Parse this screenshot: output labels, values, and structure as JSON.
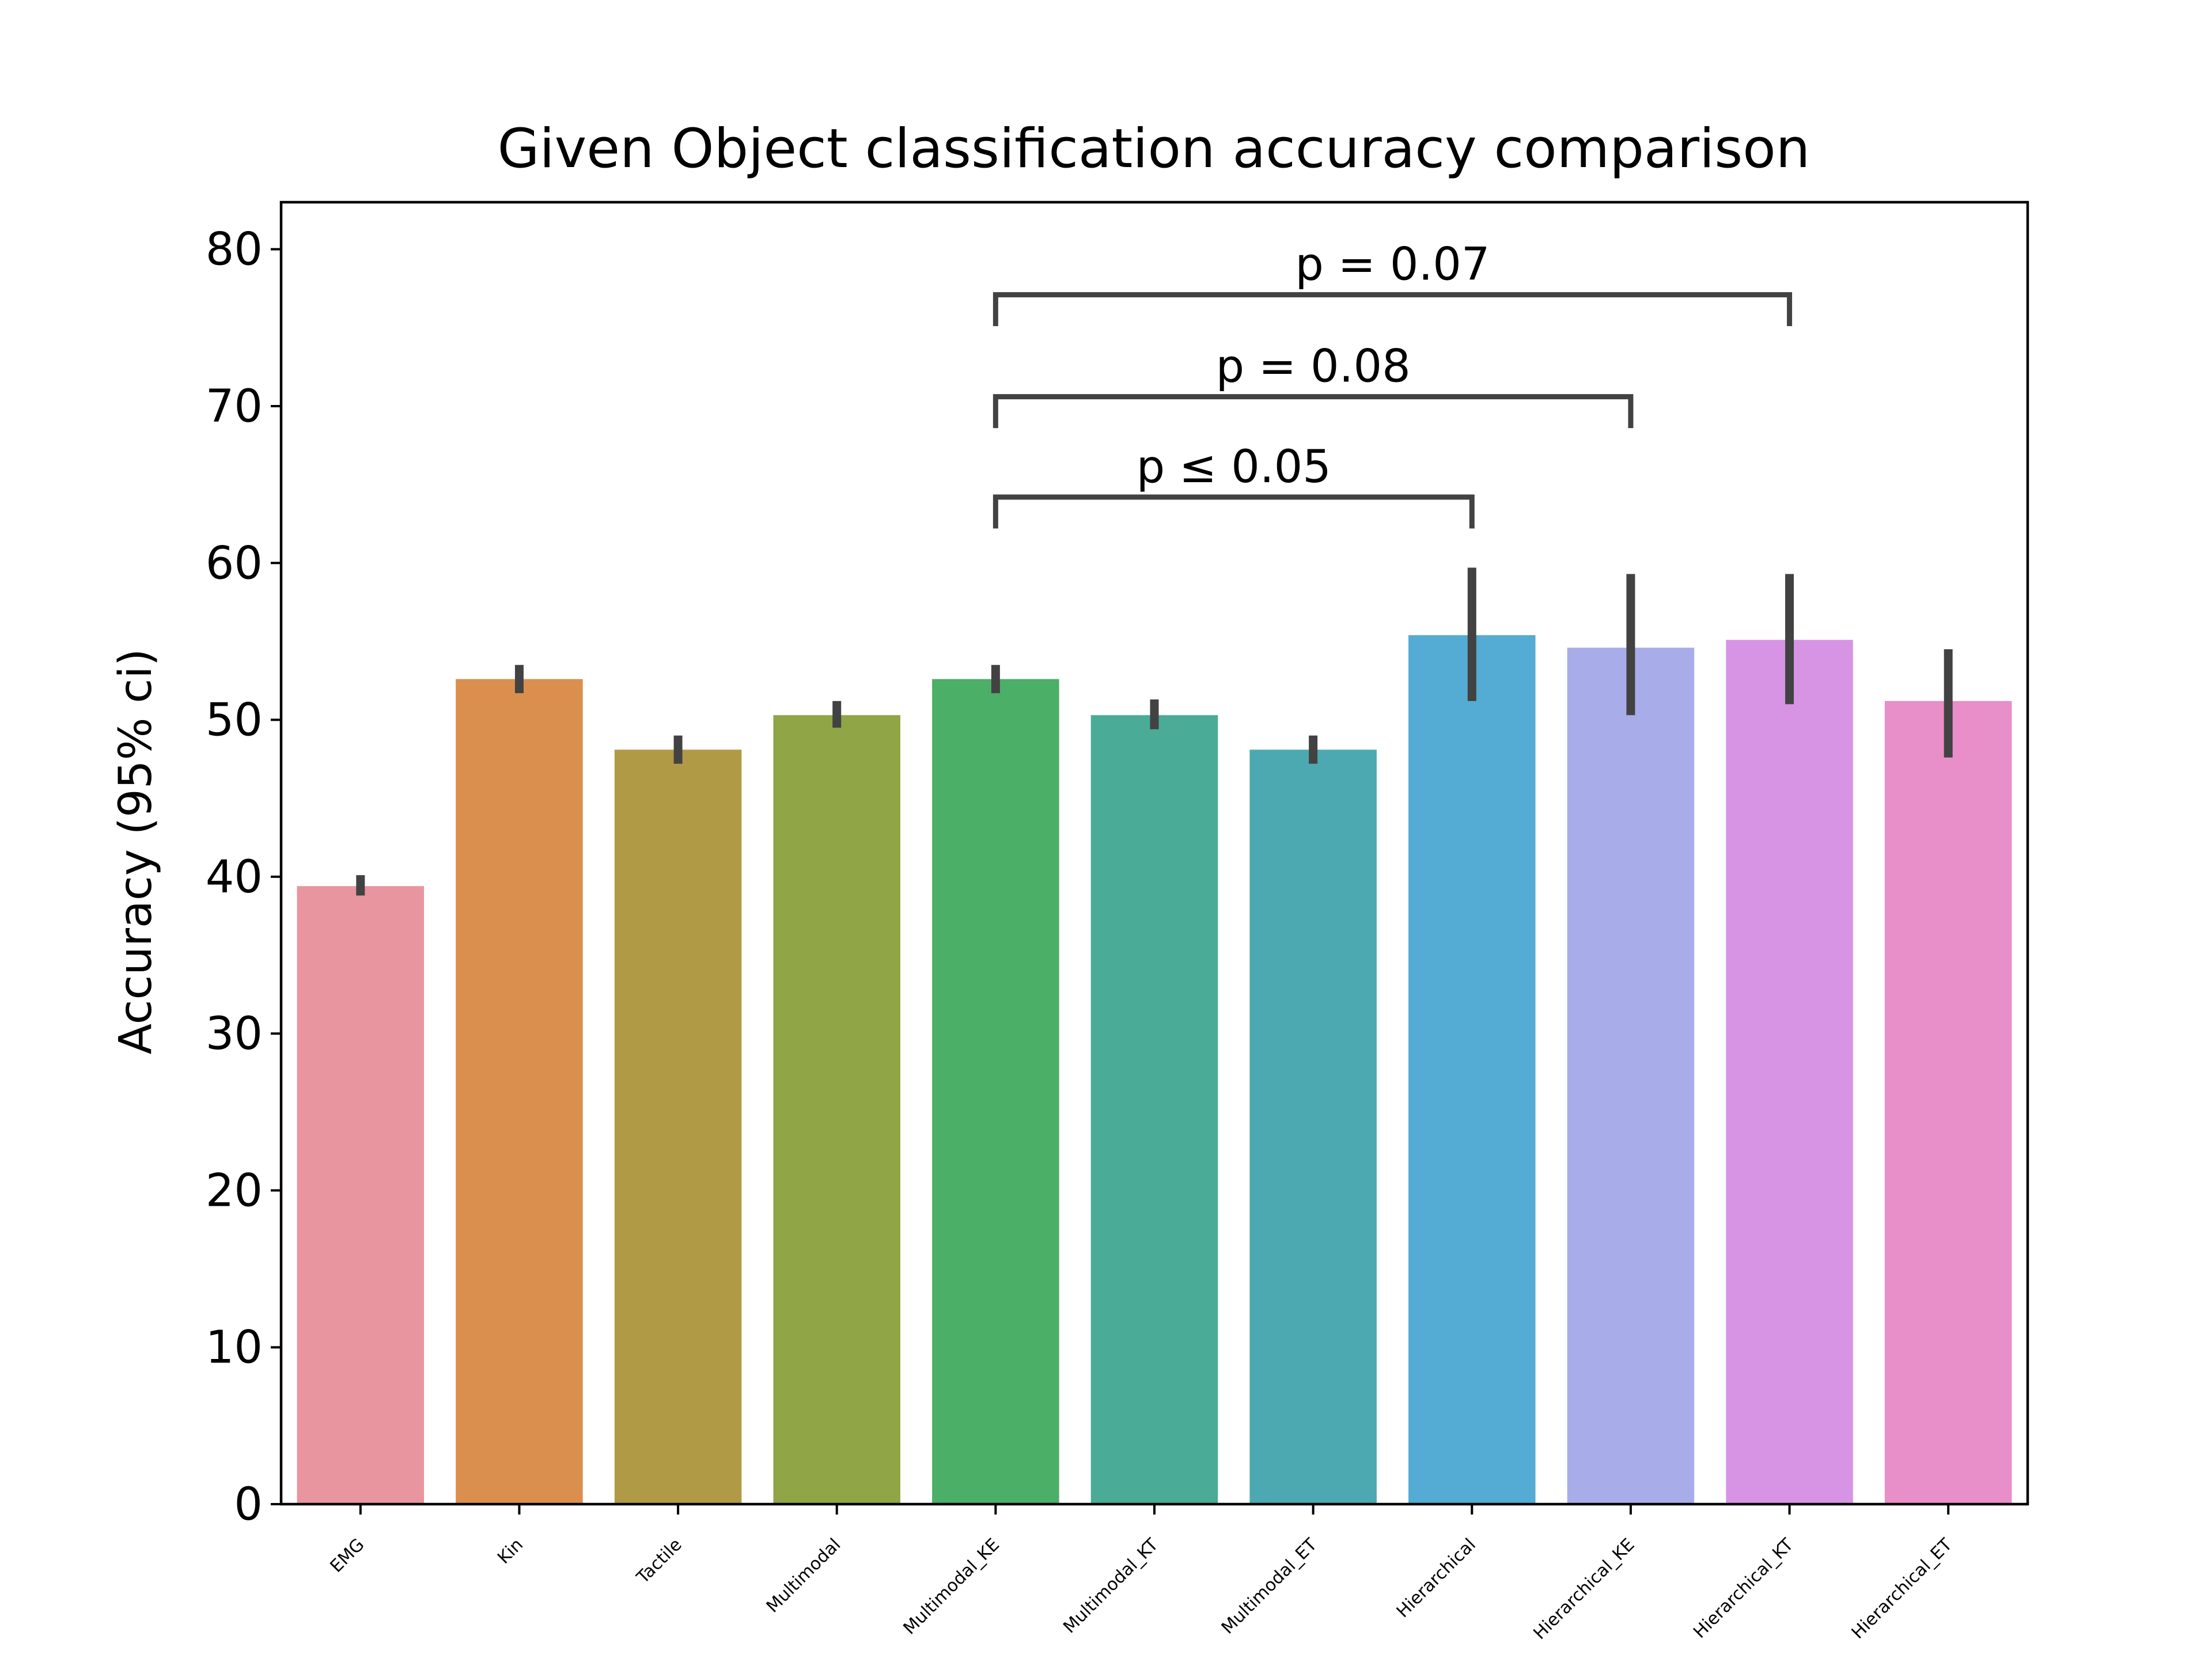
{
  "chart_data": {
    "type": "bar",
    "title": "Given Object classification accuracy comparison",
    "xlabel": "",
    "ylabel": "Accuracy (95% ci)",
    "ylim": [
      0,
      83
    ],
    "yticks": [
      0,
      10,
      20,
      30,
      40,
      50,
      60,
      70,
      80
    ],
    "grid": false,
    "categories": [
      "EMG",
      "Kin",
      "Tactile",
      "Multimodal",
      "Multimodal_KE",
      "Multimodal_KT",
      "Multimodal_ET",
      "Hierarchical",
      "Hierarchical_KE",
      "Hierarchical_KT",
      "Hierarchical_ET"
    ],
    "values": [
      39.4,
      52.6,
      48.1,
      50.3,
      52.6,
      50.3,
      48.1,
      55.4,
      54.6,
      55.1,
      51.2
    ],
    "ci_low": [
      38.8,
      51.7,
      47.2,
      49.5,
      51.7,
      49.4,
      47.2,
      51.2,
      50.3,
      51.0,
      47.6
    ],
    "ci_high": [
      40.1,
      53.5,
      49.0,
      51.2,
      53.5,
      51.3,
      49.0,
      59.7,
      59.3,
      59.3,
      54.5
    ],
    "colors": [
      "#e8959f",
      "#db8f4f",
      "#b19a46",
      "#8fa546",
      "#4baf68",
      "#4aab96",
      "#4ca9b1",
      "#54abd3",
      "#a8ade9",
      "#d894e4",
      "#e88ec8"
    ],
    "error_bar_color": "#424242",
    "annotations": [
      {
        "label": "p ≤ 0.05",
        "from": "Multimodal_KE",
        "to": "Hierarchical",
        "y": 64.2
      },
      {
        "label": "p = 0.08",
        "from": "Multimodal_KE",
        "to": "Hierarchical_KE",
        "y": 70.6
      },
      {
        "label": "p = 0.07",
        "from": "Multimodal_KE",
        "to": "Hierarchical_KT",
        "y": 77.1
      }
    ]
  }
}
